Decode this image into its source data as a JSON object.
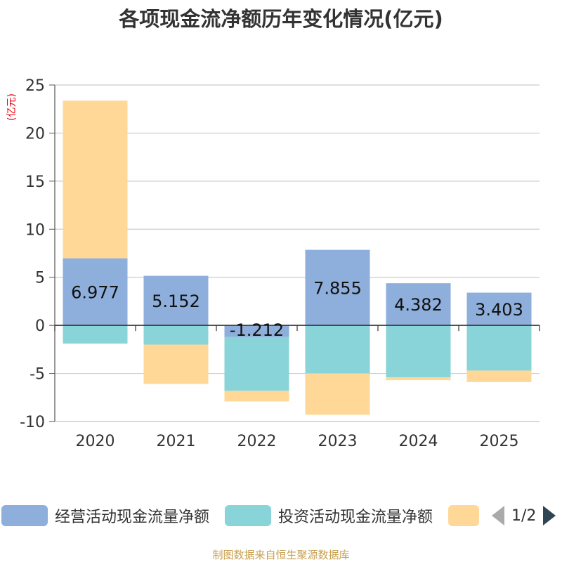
{
  "title": "各项现金流净额历年变化情况(亿元)",
  "unit_label": "(亿元)",
  "source": "制图数据来自恒生聚源数据库",
  "pager": {
    "current": "1/2"
  },
  "legend": [
    {
      "label": "经营活动现金流量净额",
      "color": "#8eaedb"
    },
    {
      "label": "投资活动现金流量净额",
      "color": "#88d4d8"
    },
    {
      "label": "",
      "color": "#ffd898"
    }
  ],
  "chart_data": {
    "type": "bar",
    "stacked": true,
    "categories": [
      "2020",
      "2021",
      "2022",
      "2023",
      "2024",
      "2025"
    ],
    "ylim": [
      -10,
      25
    ],
    "yticks": [
      25,
      20,
      15,
      10,
      5,
      0,
      -5,
      -10
    ],
    "grid": true,
    "series": [
      {
        "name": "经营活动现金流量净额",
        "color": "#8eaedb",
        "values": [
          6.977,
          5.152,
          -1.212,
          7.855,
          4.382,
          3.403
        ],
        "labels": [
          "6.977",
          "5.152",
          "-1.212",
          "7.855",
          "4.382",
          "3.403"
        ]
      },
      {
        "name": "投资活动现金流量净额",
        "color": "#88d4d8",
        "values": [
          -1.9,
          -2.0,
          -5.6,
          -5.0,
          -5.4,
          -4.7
        ]
      },
      {
        "name": "",
        "color": "#ffd898",
        "values": [
          16.4,
          -4.1,
          -1.1,
          -4.3,
          -0.3,
          -1.2
        ]
      }
    ]
  }
}
